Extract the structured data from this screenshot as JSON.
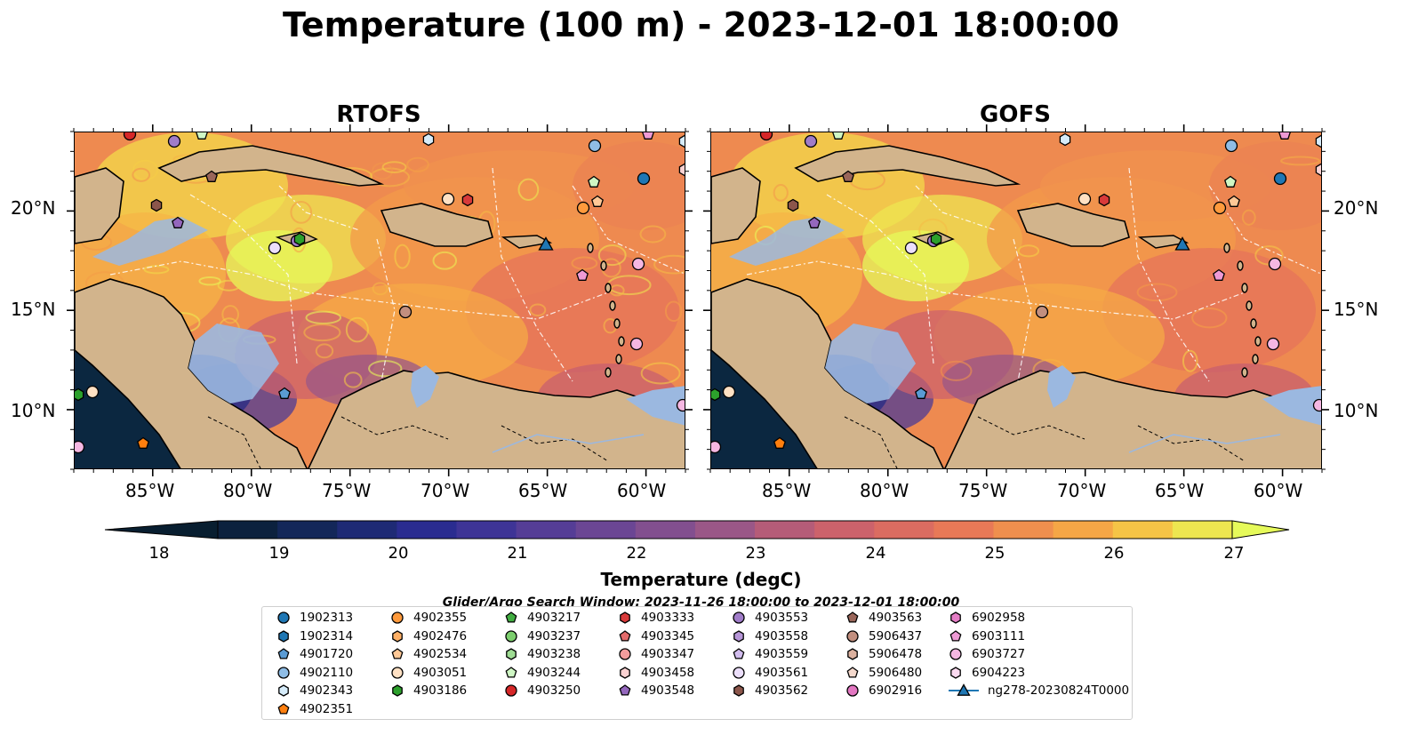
{
  "title": "Temperature (100 m) - 2023-12-01 18:00:00",
  "panels": [
    {
      "title": "RTOFS",
      "field": "rtofs"
    },
    {
      "title": "GOFS",
      "field": "gofs"
    }
  ],
  "lon_ticks": [
    "85°W",
    "80°W",
    "75°W",
    "70°W",
    "65°W",
    "60°W"
  ],
  "lat_ticks": [
    "20°N",
    "15°N",
    "10°N"
  ],
  "map_extent": {
    "lon": [
      -89,
      -58
    ],
    "lat": [
      7,
      24
    ]
  },
  "colorbar": {
    "label": "Temperature (degC)",
    "ticks": [
      "18",
      "19",
      "20",
      "21",
      "22",
      "23",
      "24",
      "25",
      "26",
      "27"
    ],
    "range": [
      18,
      27
    ],
    "extend": "both"
  },
  "search_window": "Glider/Argo Search Window: 2023-11-26 18:00:00 to 2023-12-01 18:00:00",
  "colors": {
    "land": "#d2b48c",
    "shallow": "#9bb8e0",
    "colormap": "thermal"
  },
  "legend": {
    "columns": [
      [
        {
          "label": "1902313",
          "marker": "circle",
          "color": "#1f77b4"
        },
        {
          "label": "1902314",
          "marker": "hexagon",
          "color": "#1f77b4"
        },
        {
          "label": "4901720",
          "marker": "pentagon",
          "color": "#5a9bd4"
        },
        {
          "label": "4902110",
          "marker": "circle",
          "color": "#8fbde6"
        },
        {
          "label": "4902343",
          "marker": "hexagon",
          "color": "#d6ecfa"
        },
        {
          "label": "4902351",
          "marker": "pentagon",
          "color": "#ff7f0e"
        }
      ],
      [
        {
          "label": "4902355",
          "marker": "circle",
          "color": "#ff9a3c"
        },
        {
          "label": "4902476",
          "marker": "hexagon",
          "color": "#ffb066"
        },
        {
          "label": "4902534",
          "marker": "pentagon",
          "color": "#ffc896"
        },
        {
          "label": "4903051",
          "marker": "circle",
          "color": "#ffe1c4"
        },
        {
          "label": "4903186",
          "marker": "hexagon",
          "color": "#2ca02c"
        }
      ],
      [
        {
          "label": "4903217",
          "marker": "pentagon",
          "color": "#41ad41"
        },
        {
          "label": "4903237",
          "marker": "circle",
          "color": "#7ccf6e"
        },
        {
          "label": "4903238",
          "marker": "hexagon",
          "color": "#9edc93"
        },
        {
          "label": "4903244",
          "marker": "pentagon",
          "color": "#cff7c4"
        },
        {
          "label": "4903250",
          "marker": "circle",
          "color": "#d62728"
        }
      ],
      [
        {
          "label": "4903333",
          "marker": "hexagon",
          "color": "#d83a3a"
        },
        {
          "label": "4903345",
          "marker": "pentagon",
          "color": "#e36a6a"
        },
        {
          "label": "4903347",
          "marker": "circle",
          "color": "#f29c9c"
        },
        {
          "label": "4903458",
          "marker": "hexagon",
          "color": "#fbd2d2"
        },
        {
          "label": "4903548",
          "marker": "pentagon",
          "color": "#9467bd"
        }
      ],
      [
        {
          "label": "4903553",
          "marker": "circle",
          "color": "#a07cc8"
        },
        {
          "label": "4903558",
          "marker": "hexagon",
          "color": "#b796d8"
        },
        {
          "label": "4903559",
          "marker": "pentagon",
          "color": "#d2bdee"
        },
        {
          "label": "4903561",
          "marker": "circle",
          "color": "#ecdffb"
        },
        {
          "label": "4903562",
          "marker": "hexagon",
          "color": "#8c564b"
        }
      ],
      [
        {
          "label": "4903563",
          "marker": "pentagon",
          "color": "#9a665a"
        },
        {
          "label": "5906437",
          "marker": "circle",
          "color": "#c28f7f"
        },
        {
          "label": "5906478",
          "marker": "hexagon",
          "color": "#dcb19f"
        },
        {
          "label": "5906480",
          "marker": "pentagon",
          "color": "#f5d9cd"
        },
        {
          "label": "6902916",
          "marker": "circle",
          "color": "#e377c2"
        }
      ],
      [
        {
          "label": "6902958",
          "marker": "hexagon",
          "color": "#e57dc6"
        },
        {
          "label": "6903111",
          "marker": "pentagon",
          "color": "#ee9ad5"
        },
        {
          "label": "6903727",
          "marker": "circle",
          "color": "#f5b7e2"
        },
        {
          "label": "6904223",
          "marker": "hexagon",
          "color": "#fbdaf0"
        },
        {
          "label": "ng278-20230824T0000",
          "marker": "triangle-line",
          "color": "#1f77b4"
        }
      ]
    ]
  }
}
